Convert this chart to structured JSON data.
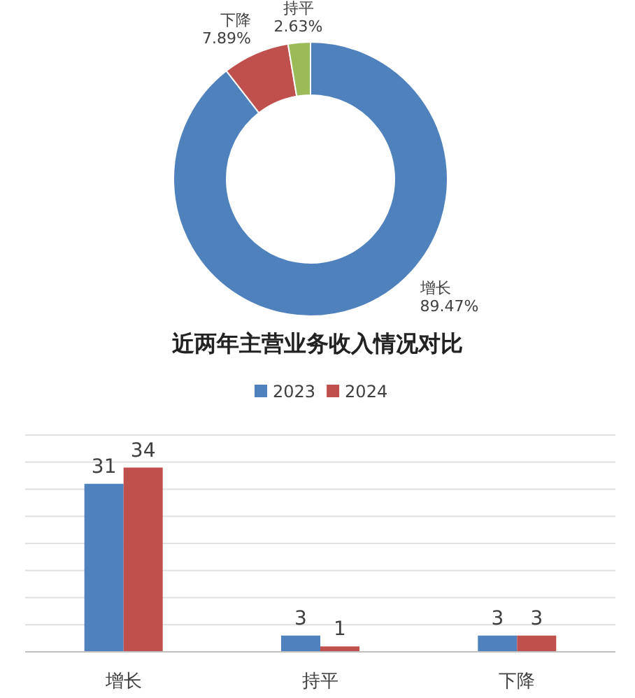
{
  "chart_data": [
    {
      "type": "donut",
      "categories": [
        "增长",
        "下降",
        "持平"
      ],
      "values": [
        89.47,
        7.89,
        2.63
      ],
      "colors": [
        "#4f81bd",
        "#c0504d",
        "#9bbb59"
      ],
      "value_labels": [
        "89.47%",
        "7.89%",
        "2.63%"
      ]
    },
    {
      "type": "bar",
      "title": "近两年主营业务收入情况对比",
      "categories": [
        "增长",
        "持平",
        "下降"
      ],
      "series": [
        {
          "name": "2023",
          "color": "#4f81bd",
          "values": [
            31,
            3,
            3
          ]
        },
        {
          "name": "2024",
          "color": "#c0504d",
          "values": [
            34,
            1,
            3
          ]
        }
      ],
      "ylim": [
        0,
        40
      ],
      "yticks": [
        {
          "value": 0,
          "label": null
        },
        {
          "value": 5,
          "label": null
        },
        {
          "value": 10,
          "label": null
        },
        {
          "value": 15,
          "label": null
        },
        {
          "value": 20,
          "label": null
        },
        {
          "value": 25,
          "label": null
        },
        {
          "value": 30,
          "label": null
        },
        {
          "value": 35,
          "label": null
        },
        {
          "value": 40,
          "label": null
        }
      ],
      "tick_labels": "x",
      "grid": "y",
      "legend": "top",
      "data_labels": true
    }
  ]
}
